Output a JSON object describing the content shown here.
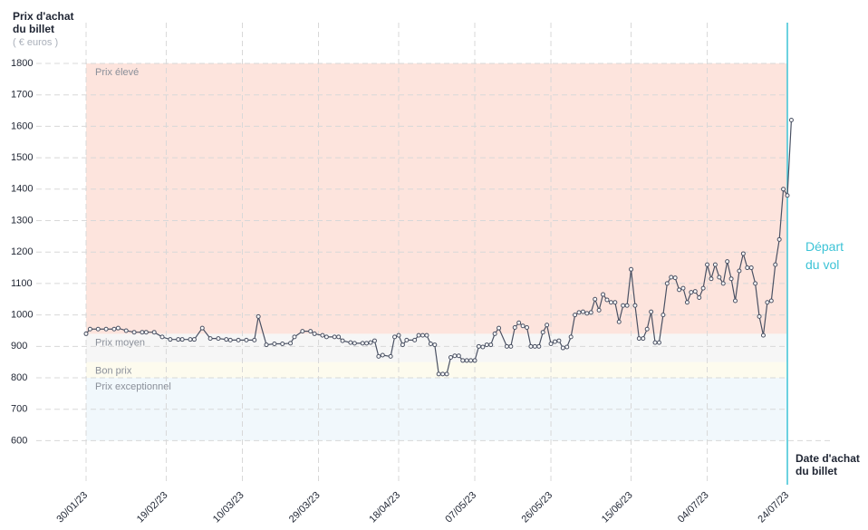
{
  "chart_data": {
    "type": "line",
    "y_title": "Prix d'achat du billet",
    "y_unit": "( € euros )",
    "x_title": "Date d'achat du billet",
    "departure": {
      "date": "24/07/23",
      "label": "Départ du vol",
      "color": "#3cc3d6"
    },
    "bands": [
      {
        "label": "Prix élevé",
        "from": 940,
        "to": 1800,
        "color": "#fde4dd"
      },
      {
        "label": "Prix moyen",
        "from": 850,
        "to": 940,
        "color": "#f6f6f6"
      },
      {
        "label": "Bon prix",
        "from": 800,
        "to": 850,
        "color": "#fdfbee"
      },
      {
        "label": "Prix exceptionnel",
        "from": 600,
        "to": 800,
        "color": "#f1f8fc"
      }
    ],
    "ylim": [
      460,
      1800
    ],
    "yticks": [
      600,
      700,
      800,
      900,
      1000,
      1100,
      1200,
      1300,
      1400,
      1500,
      1600,
      1700,
      1800
    ],
    "xlim": [
      "30/01/23",
      "24/07/23"
    ],
    "xticks": [
      "30/01/23",
      "19/02/23",
      "10/03/23",
      "29/03/23",
      "18/04/23",
      "07/05/23",
      "26/05/23",
      "15/06/23",
      "04/07/23",
      "24/07/23"
    ],
    "grid": true,
    "x": [
      "30/01/23",
      "31/01/23",
      "02/02/23",
      "04/02/23",
      "06/02/23",
      "07/02/23",
      "09/02/23",
      "11/02/23",
      "13/02/23",
      "14/02/23",
      "16/02/23",
      "18/02/23",
      "20/02/23",
      "22/02/23",
      "23/02/23",
      "25/02/23",
      "26/02/23",
      "28/02/23",
      "02/03/23",
      "04/03/23",
      "06/03/23",
      "07/03/23",
      "09/03/23",
      "11/03/23",
      "13/03/23",
      "14/03/23",
      "16/03/23",
      "18/03/23",
      "20/03/23",
      "22/03/23",
      "23/03/23",
      "25/03/23",
      "27/03/23",
      "28/03/23",
      "30/03/23",
      "31/03/23",
      "02/04/23",
      "03/04/23",
      "04/04/23",
      "06/04/23",
      "07/04/23",
      "09/04/23",
      "10/04/23",
      "11/04/23",
      "12/04/23",
      "13/04/23",
      "14/04/23",
      "16/04/23",
      "17/04/23",
      "18/04/23",
      "19/04/23",
      "20/04/23",
      "22/04/23",
      "23/04/23",
      "24/04/23",
      "25/04/23",
      "26/04/23",
      "27/04/23",
      "28/04/23",
      "29/04/23",
      "30/04/23",
      "01/05/23",
      "02/05/23",
      "03/05/23",
      "04/05/23",
      "05/05/23",
      "06/05/23",
      "07/05/23",
      "08/05/23",
      "09/05/23",
      "10/05/23",
      "11/05/23",
      "12/05/23",
      "13/05/23",
      "15/05/23",
      "16/05/23",
      "17/05/23",
      "18/05/23",
      "19/05/23",
      "20/05/23",
      "21/05/23",
      "22/05/23",
      "23/05/23",
      "24/05/23",
      "25/05/23",
      "26/05/23",
      "27/05/23",
      "28/05/23",
      "29/05/23",
      "30/05/23",
      "31/05/23",
      "01/06/23",
      "02/06/23",
      "03/06/23",
      "04/06/23",
      "05/06/23",
      "06/06/23",
      "07/06/23",
      "08/06/23",
      "09/06/23",
      "10/06/23",
      "11/06/23",
      "12/06/23",
      "13/06/23",
      "14/06/23",
      "15/06/23",
      "16/06/23",
      "17/06/23",
      "18/06/23",
      "19/06/23",
      "20/06/23",
      "21/06/23",
      "22/06/23",
      "23/06/23",
      "24/06/23",
      "25/06/23",
      "26/06/23",
      "27/06/23",
      "28/06/23",
      "29/06/23",
      "30/06/23",
      "01/07/23",
      "02/07/23",
      "03/07/23",
      "04/07/23",
      "05/07/23",
      "06/07/23",
      "07/07/23",
      "08/07/23",
      "09/07/23",
      "10/07/23",
      "11/07/23",
      "12/07/23",
      "13/07/23",
      "14/07/23",
      "15/07/23",
      "16/07/23",
      "17/07/23",
      "18/07/23",
      "19/07/23",
      "20/07/23",
      "21/07/23",
      "22/07/23",
      "23/07/23",
      "24/07/23",
      "25/07/23"
    ],
    "series": [
      {
        "name": "Prix",
        "color": "#4a5163",
        "values": [
          940,
          955,
          955,
          955,
          955,
          958,
          950,
          945,
          945,
          945,
          945,
          930,
          922,
          922,
          922,
          922,
          922,
          958,
          925,
          925,
          922,
          920,
          920,
          920,
          920,
          995,
          905,
          908,
          908,
          910,
          930,
          948,
          948,
          940,
          935,
          930,
          930,
          930,
          918,
          912,
          910,
          910,
          910,
          912,
          918,
          868,
          872,
          868,
          930,
          935,
          905,
          920,
          920,
          935,
          935,
          935,
          908,
          905,
          812,
          812,
          812,
          865,
          870,
          870,
          855,
          855,
          855,
          855,
          900,
          898,
          905,
          905,
          940,
          958,
          900,
          900,
          960,
          975,
          965,
          960,
          900,
          900,
          900,
          945,
          968,
          908,
          915,
          918,
          895,
          898,
          930,
          1000,
          1008,
          1010,
          1005,
          1008,
          1050,
          1015,
          1065,
          1048,
          1040,
          1040,
          978,
          1030,
          1030,
          1145,
          1030,
          925,
          925,
          955,
          1010,
          912,
          912,
          1000,
          1100,
          1120,
          1118,
          1080,
          1085,
          1040,
          1072,
          1075,
          1055,
          1085,
          1160,
          1115,
          1160,
          1120,
          1100,
          1170,
          1115,
          1045,
          1140,
          1195,
          1150,
          1150,
          1100,
          995,
          935,
          1040,
          1045,
          1160,
          1240,
          1400,
          1380,
          1620
        ]
      }
    ]
  }
}
